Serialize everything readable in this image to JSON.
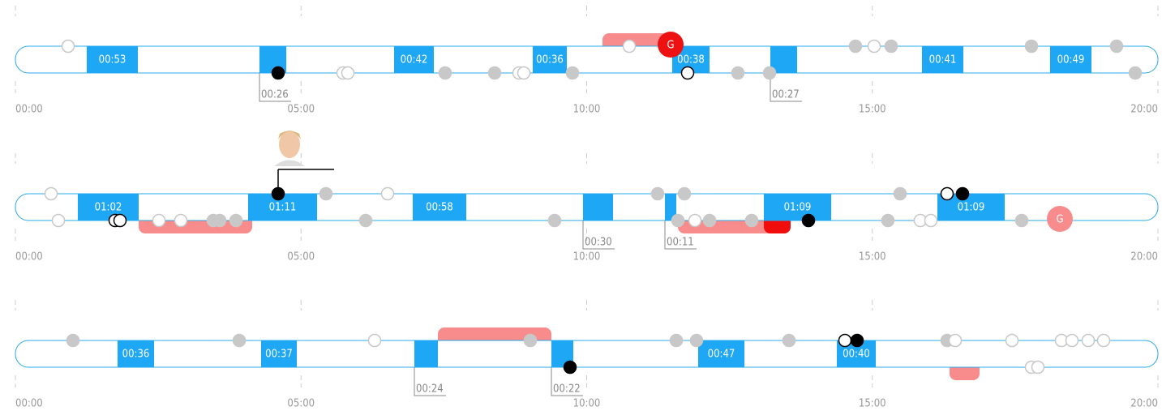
{
  "rows": [
    {
      "shifts": [
        "00:53",
        "00:26",
        "00:42",
        "00:36",
        "00:38",
        "00:27",
        "00:41",
        "00:49"
      ],
      "goal": "G",
      "axis_labels": [
        "00:00",
        "05:00",
        "10:00",
        "15:00",
        "20:00"
      ]
    },
    {
      "shifts": [
        "01:02",
        "01:11",
        "00:58",
        "00:30",
        "00:11",
        "01:09",
        "01:09"
      ],
      "goal": "G",
      "axis_labels": [
        "00:00",
        "05:00",
        "10:00",
        "15:00",
        "20:00"
      ]
    },
    {
      "shifts": [
        "00:36",
        "00:37",
        "00:24",
        "00:22",
        "00:47",
        "00:40"
      ],
      "axis_labels": [
        "00:00",
        "05:00",
        "10:00",
        "15:00",
        "20:00"
      ]
    }
  ]
}
